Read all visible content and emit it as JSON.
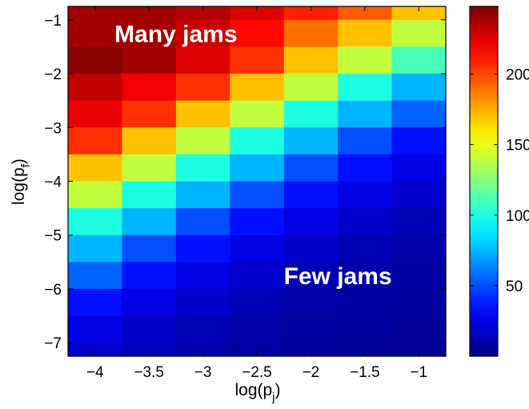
{
  "chart_data": {
    "type": "heatmap",
    "title": "",
    "xlabel": {
      "base": "log(p",
      "sub": "j",
      "close": ")"
    },
    "ylabel": {
      "base": "log(p",
      "sub": "f",
      "close": ")"
    },
    "x_centers": [
      -4.0,
      -3.5,
      -3.0,
      -2.5,
      -2.0,
      -1.5,
      -1.0
    ],
    "y_centers": [
      -0.75,
      -1.25,
      -1.75,
      -2.25,
      -2.75,
      -3.25,
      -3.75,
      -4.25,
      -4.75,
      -5.25,
      -5.75,
      -6.25,
      -6.75,
      -7.25
    ],
    "xlim": [
      -4.25,
      -0.75
    ],
    "ylim": [
      -7.25,
      -0.75
    ],
    "x_ticks": [
      -4,
      -3.5,
      -3,
      -2.5,
      -2,
      -1.5,
      -1
    ],
    "x_tick_labels": [
      "−4",
      "−3.5",
      "−3",
      "−2.5",
      "−2",
      "−1.5",
      "−1"
    ],
    "y_ticks": [
      -1,
      -2,
      -3,
      -4,
      -5,
      -6,
      -7
    ],
    "y_tick_labels": [
      "−1",
      "−2",
      "−3",
      "−4",
      "−5",
      "−6",
      "−7"
    ],
    "values": [
      [
        240,
        240,
        235,
        225,
        210,
        195,
        170
      ],
      [
        240,
        240,
        230,
        215,
        190,
        170,
        140
      ],
      [
        245,
        240,
        225,
        205,
        170,
        140,
        110
      ],
      [
        232,
        220,
        205,
        170,
        140,
        100,
        75
      ],
      [
        222,
        205,
        170,
        140,
        100,
        75,
        55
      ],
      [
        205,
        170,
        140,
        100,
        75,
        50,
        35
      ],
      [
        170,
        140,
        100,
        75,
        50,
        35,
        25
      ],
      [
        140,
        100,
        75,
        50,
        35,
        25,
        18
      ],
      [
        100,
        75,
        50,
        35,
        25,
        18,
        13
      ],
      [
        75,
        50,
        35,
        25,
        18,
        13,
        10
      ],
      [
        55,
        35,
        25,
        18,
        13,
        10,
        8
      ],
      [
        35,
        25,
        18,
        13,
        10,
        8,
        7
      ],
      [
        25,
        18,
        13,
        10,
        8,
        7,
        6
      ],
      [
        18,
        13,
        10,
        8,
        7,
        6,
        5
      ]
    ],
    "colorbar": {
      "min": 0,
      "max": 248,
      "ticks": [
        50,
        100,
        150,
        200
      ],
      "tick_labels": [
        "50",
        "100",
        "150",
        "200"
      ],
      "colormap": "jet"
    },
    "annotations": [
      {
        "text": "Many jams",
        "x": -3.25,
        "y": -1.25
      },
      {
        "text": "Few jams",
        "x": -1.75,
        "y": -5.75
      }
    ],
    "grid": false
  }
}
